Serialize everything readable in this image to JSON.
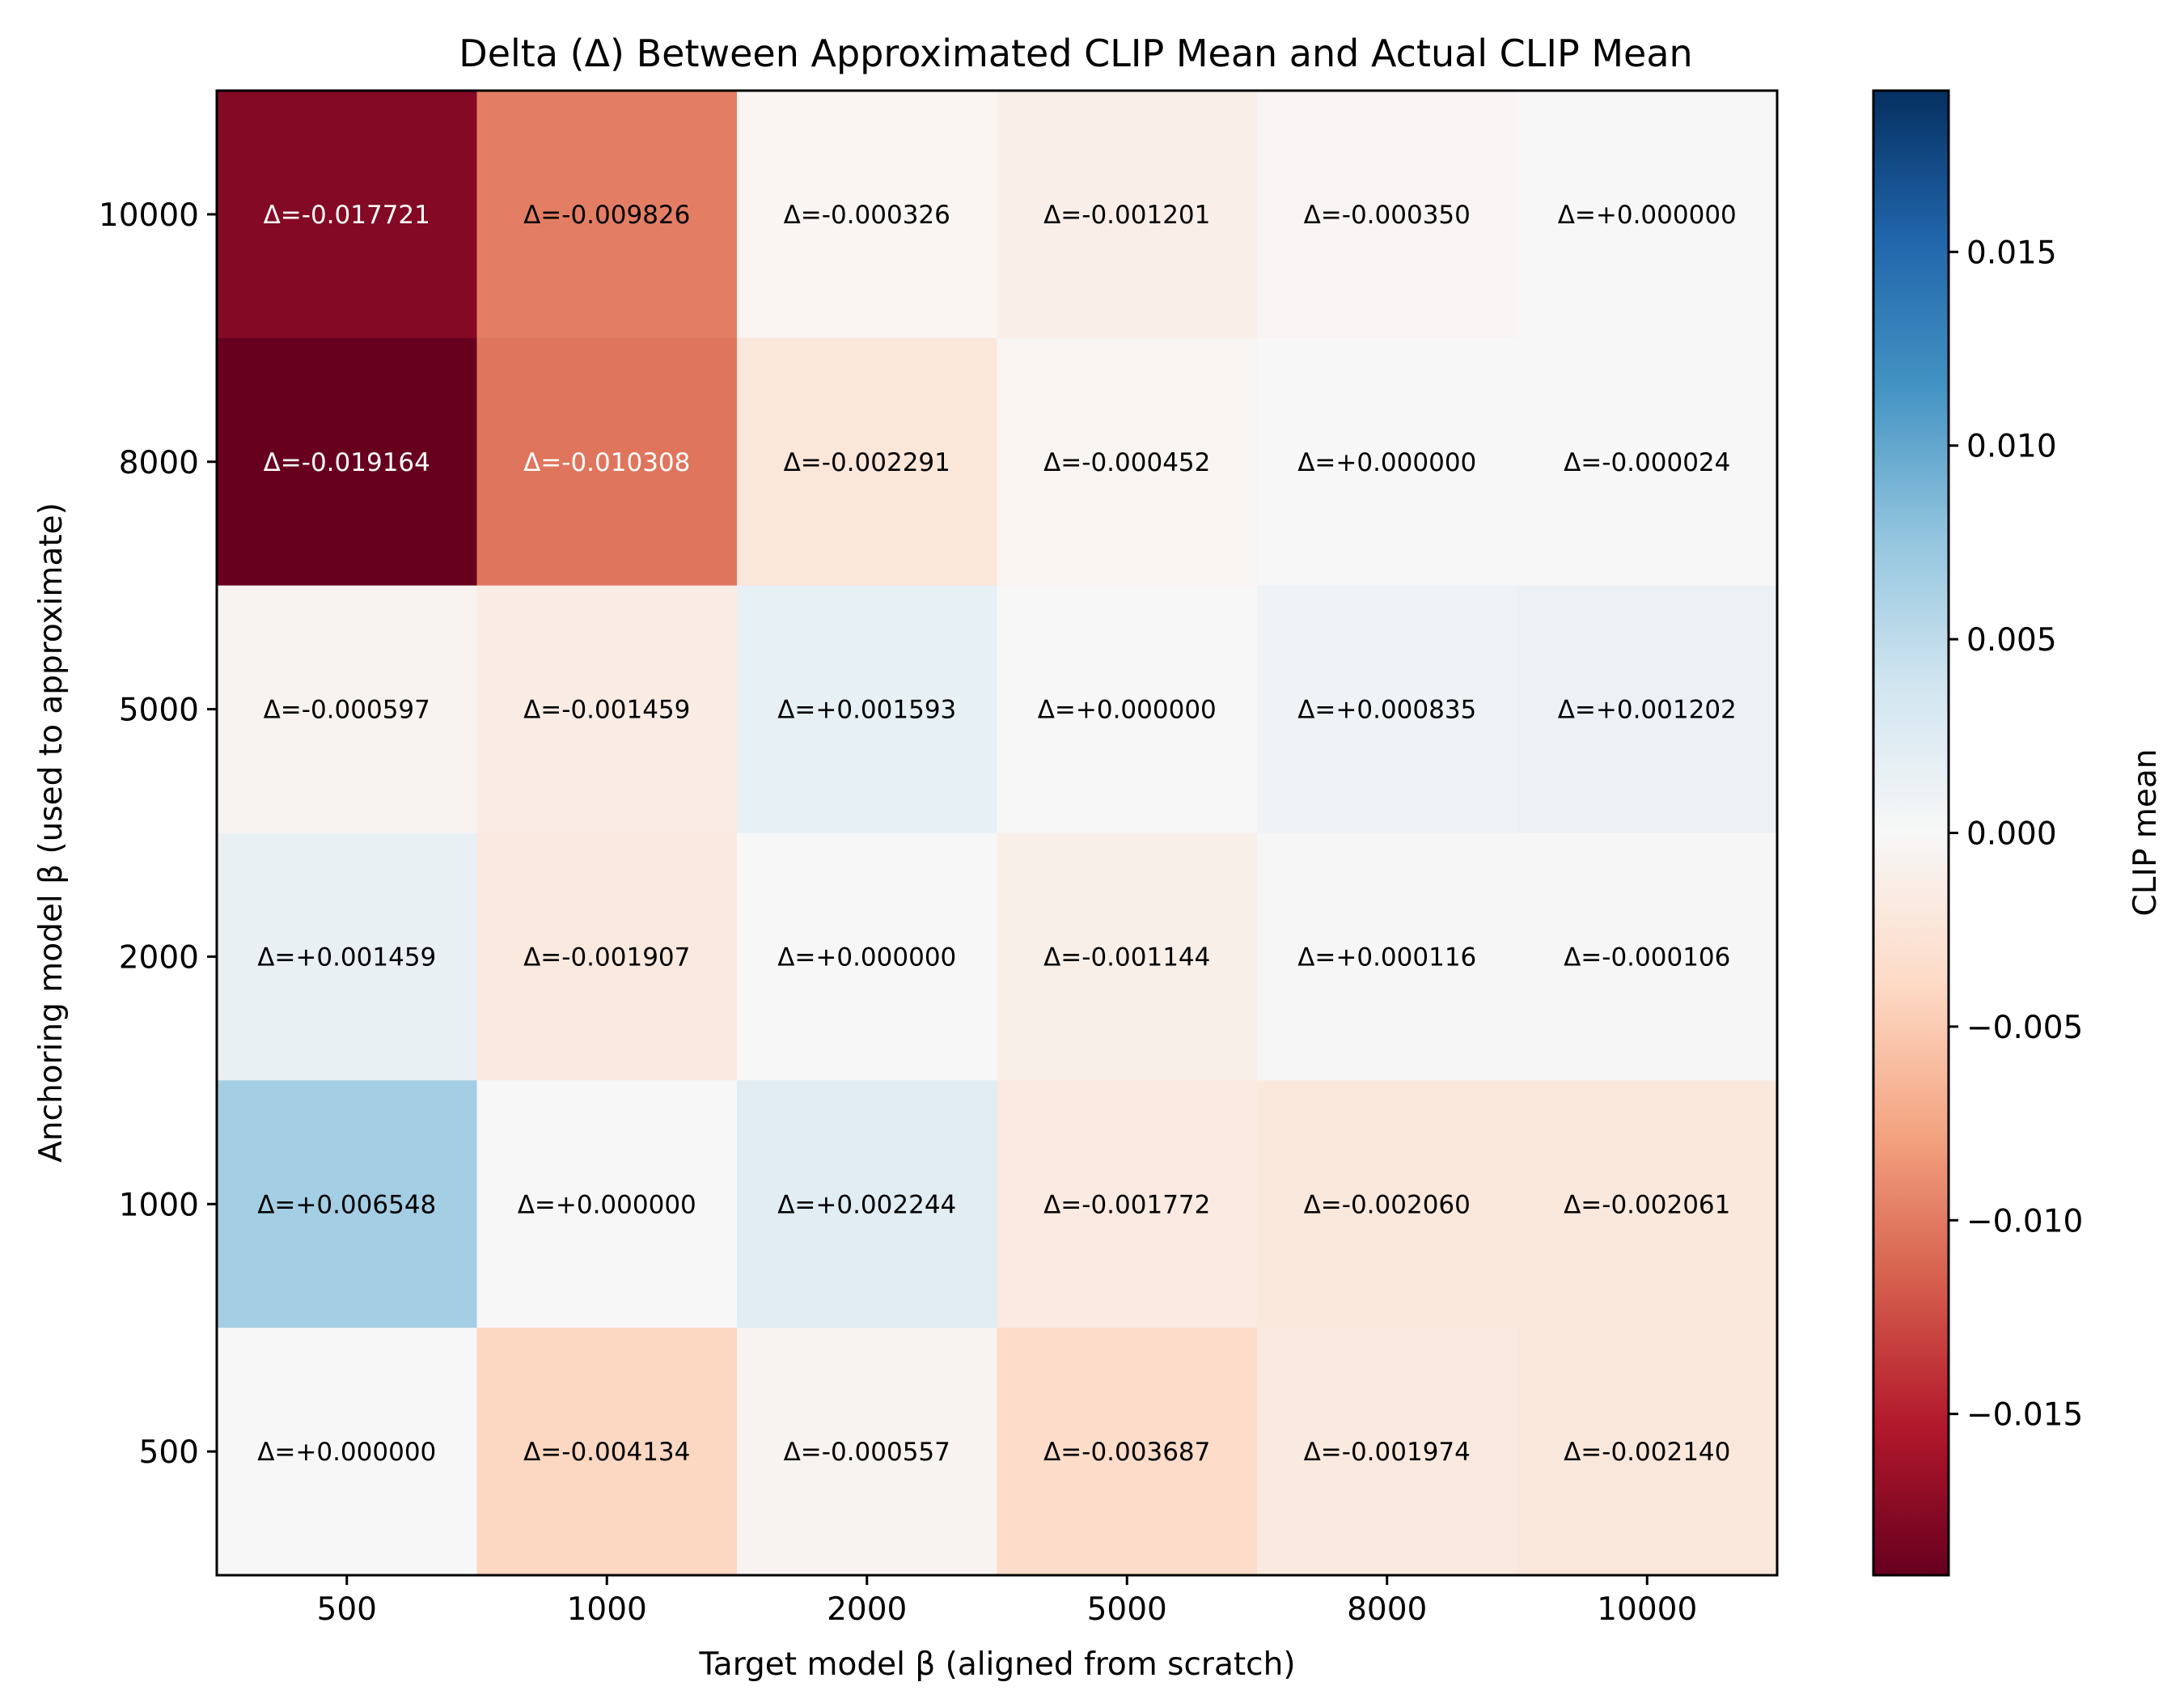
{
  "chart_data": {
    "type": "heatmap",
    "title": "Delta (Δ) Between Approximated CLIP Mean and Actual CLIP Mean",
    "xlabel": "Target model β (aligned from scratch)",
    "ylabel": "Anchoring model β (used to approximate)",
    "x_categories": [
      "500",
      "1000",
      "2000",
      "5000",
      "8000",
      "10000"
    ],
    "y_categories": [
      "10000",
      "8000",
      "5000",
      "2000",
      "1000",
      "500"
    ],
    "values": [
      [
        -0.017721,
        -0.009826,
        -0.000326,
        -0.001201,
        -0.00035,
        0.0
      ],
      [
        -0.019164,
        -0.010308,
        -0.002291,
        -0.000452,
        0.0,
        -2.4e-05
      ],
      [
        -0.000597,
        -0.001459,
        0.001593,
        0.0,
        0.000835,
        0.001202
      ],
      [
        0.001459,
        -0.001907,
        0.0,
        -0.001144,
        0.000116,
        -0.000106
      ],
      [
        0.006548,
        0.0,
        0.002244,
        -0.001772,
        -0.00206,
        -0.002061
      ],
      [
        0.0,
        -0.004134,
        -0.000557,
        -0.003687,
        -0.001974,
        -0.00214
      ]
    ],
    "cell_labels": [
      [
        "Δ=-0.017721",
        "Δ=-0.009826",
        "Δ=-0.000326",
        "Δ=-0.001201",
        "Δ=-0.000350",
        "Δ=+0.000000"
      ],
      [
        "Δ=-0.019164",
        "Δ=-0.010308",
        "Δ=-0.002291",
        "Δ=-0.000452",
        "Δ=+0.000000",
        "Δ=-0.000024"
      ],
      [
        "Δ=-0.000597",
        "Δ=-0.001459",
        "Δ=+0.001593",
        "Δ=+0.000000",
        "Δ=+0.000835",
        "Δ=+0.001202"
      ],
      [
        "Δ=+0.001459",
        "Δ=-0.001907",
        "Δ=+0.000000",
        "Δ=-0.001144",
        "Δ=+0.000116",
        "Δ=-0.000106"
      ],
      [
        "Δ=+0.006548",
        "Δ=+0.000000",
        "Δ=+0.002244",
        "Δ=-0.001772",
        "Δ=-0.002060",
        "Δ=-0.002061"
      ],
      [
        "Δ=+0.000000",
        "Δ=-0.004134",
        "Δ=-0.000557",
        "Δ=-0.003687",
        "Δ=-0.001974",
        "Δ=-0.002140"
      ]
    ],
    "colorbar": {
      "label": "CLIP mean",
      "colormap": "RdBu",
      "vmin": -0.019164,
      "vmax": 0.019164,
      "ticks": [
        0.015,
        0.01,
        0.005,
        0.0,
        -0.005,
        -0.01,
        -0.015
      ],
      "tick_labels": [
        "0.015",
        "0.010",
        "0.005",
        "0.000",
        "−0.005",
        "−0.010",
        "−0.015"
      ]
    },
    "colormap_stops": [
      "#67001f",
      "#b2182b",
      "#d6604d",
      "#f4a582",
      "#fddbc7",
      "#f7f7f7",
      "#d1e5f0",
      "#92c5de",
      "#4393c3",
      "#2166ac",
      "#053061"
    ],
    "grid": false
  }
}
